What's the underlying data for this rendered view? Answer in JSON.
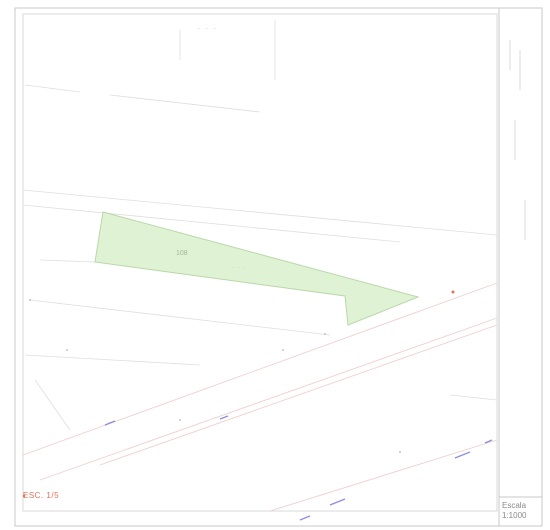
{
  "map": {
    "scale_title": "Escala",
    "scale_value": "1:1000",
    "corner_label": "ESC. 1/5",
    "top_code": "· · ·",
    "parcel_number": "108",
    "parcel_tag": "· · ·",
    "side_title": "",
    "side_notes": "",
    "colors": {
      "parcel_fill": "#dff3d4",
      "parcel_stroke": "#b8d8a8",
      "line_gray": "#d6d6d6",
      "line_pink": "#f0c8c8",
      "accent_red": "#e3705a",
      "accent_blue": "#8a8ae0"
    }
  }
}
